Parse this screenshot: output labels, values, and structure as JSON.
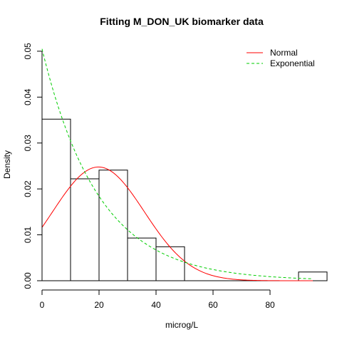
{
  "chart_data": {
    "type": "histogram",
    "title": "Fitting M_DON_UK biomarker data",
    "xlabel": "microg/L",
    "ylabel": "Density",
    "xlim": [
      0,
      98
    ],
    "ylim": [
      0,
      0.052
    ],
    "x_ticks": [
      0,
      20,
      40,
      60,
      80
    ],
    "y_ticks": [
      "0.00",
      "0.01",
      "0.02",
      "0.03",
      "0.04",
      "0.05"
    ],
    "legend_position": "top-right",
    "bins": [
      {
        "from": 0,
        "to": 10,
        "density": 0.0352
      },
      {
        "from": 10,
        "to": 20,
        "density": 0.0222
      },
      {
        "from": 20,
        "to": 30,
        "density": 0.0241
      },
      {
        "from": 30,
        "to": 40,
        "density": 0.0093
      },
      {
        "from": 40,
        "to": 50,
        "density": 0.0074
      },
      {
        "from": 90,
        "to": 100,
        "density": 0.0019
      }
    ],
    "series": [
      {
        "name": "Normal",
        "kind": "normal",
        "mean": 19.8,
        "sd": 16.1,
        "color": "#ff0000",
        "dash": "solid"
      },
      {
        "name": "Exponential",
        "kind": "exponential",
        "rate": 0.0505,
        "color": "#00cd00",
        "dash": "dashed"
      }
    ],
    "curve_x_range": [
      0,
      95
    ]
  }
}
